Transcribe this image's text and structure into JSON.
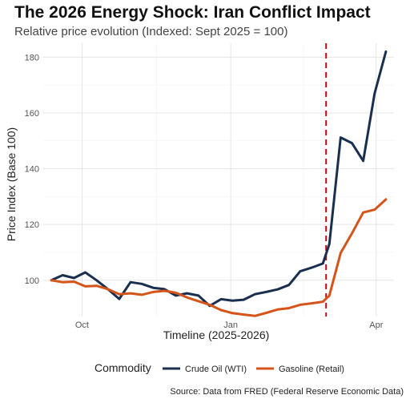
{
  "chart_data": {
    "type": "line",
    "title": "The 2026 Energy Shock: Iran Conflict Impact",
    "subtitle": "Relative price evolution (Indexed: Sept 2025 = 100)",
    "xlabel": "Timeline (2025-2026)",
    "ylabel": "Price Index (Base 100)",
    "caption": "Source: Data from FRED (Federal Reserve Economic Data)",
    "legend_title": "Commodity",
    "legend_position": "bottom",
    "grid": true,
    "x_ticks": [
      {
        "date": "2025-10-01",
        "label": "Oct"
      },
      {
        "date": "2026-01-01",
        "label": "Jan"
      },
      {
        "date": "2026-04-01",
        "label": "Apr"
      }
    ],
    "xlim": [
      "2025-09-07",
      "2026-04-12"
    ],
    "ylim": [
      87,
      185
    ],
    "y_ticks": [
      100,
      120,
      140,
      160,
      180
    ],
    "event_line": {
      "date": "2026-03-01",
      "color": "#cc0000",
      "style": "dashed"
    },
    "series": [
      {
        "name": "Crude Oil (WTI)",
        "color": "#1a2f4e",
        "points": [
          {
            "x": "2025-09-12",
            "y": 100
          },
          {
            "x": "2025-09-19",
            "y": 101.8
          },
          {
            "x": "2025-09-26",
            "y": 100.8
          },
          {
            "x": "2025-10-03",
            "y": 102.8
          },
          {
            "x": "2025-10-10",
            "y": 100
          },
          {
            "x": "2025-10-17",
            "y": 96.8
          },
          {
            "x": "2025-10-24",
            "y": 93.3
          },
          {
            "x": "2025-10-31",
            "y": 99.3
          },
          {
            "x": "2025-11-07",
            "y": 98.7
          },
          {
            "x": "2025-11-14",
            "y": 97.3
          },
          {
            "x": "2025-11-21",
            "y": 96.8
          },
          {
            "x": "2025-11-28",
            "y": 94.5
          },
          {
            "x": "2025-12-05",
            "y": 95.3
          },
          {
            "x": "2025-12-12",
            "y": 94.5
          },
          {
            "x": "2025-12-19",
            "y": 90.8
          },
          {
            "x": "2025-12-26",
            "y": 93.2
          },
          {
            "x": "2026-01-02",
            "y": 92.7
          },
          {
            "x": "2026-01-09",
            "y": 93
          },
          {
            "x": "2026-01-16",
            "y": 95
          },
          {
            "x": "2026-01-23",
            "y": 95.8
          },
          {
            "x": "2026-01-30",
            "y": 96.7
          },
          {
            "x": "2026-02-06",
            "y": 98.3
          },
          {
            "x": "2026-02-13",
            "y": 103.2
          },
          {
            "x": "2026-02-20",
            "y": 104.5
          },
          {
            "x": "2026-02-27",
            "y": 106
          },
          {
            "x": "2026-03-03",
            "y": 113
          },
          {
            "x": "2026-03-10",
            "y": 151.2
          },
          {
            "x": "2026-03-17",
            "y": 149.2
          },
          {
            "x": "2026-03-24",
            "y": 142.8
          },
          {
            "x": "2026-03-31",
            "y": 167
          },
          {
            "x": "2026-04-07",
            "y": 182
          }
        ]
      },
      {
        "name": "Gasoline (Retail)",
        "color": "#d4541a",
        "points": [
          {
            "x": "2025-09-12",
            "y": 100
          },
          {
            "x": "2025-09-19",
            "y": 99.3
          },
          {
            "x": "2025-09-26",
            "y": 99.5
          },
          {
            "x": "2025-10-03",
            "y": 97.8
          },
          {
            "x": "2025-10-10",
            "y": 98
          },
          {
            "x": "2025-10-17",
            "y": 96.8
          },
          {
            "x": "2025-10-24",
            "y": 95
          },
          {
            "x": "2025-10-31",
            "y": 95.3
          },
          {
            "x": "2025-11-07",
            "y": 94.8
          },
          {
            "x": "2025-11-14",
            "y": 95.8
          },
          {
            "x": "2025-11-21",
            "y": 96.2
          },
          {
            "x": "2025-11-28",
            "y": 95.5
          },
          {
            "x": "2025-12-05",
            "y": 93.8
          },
          {
            "x": "2025-12-12",
            "y": 92.5
          },
          {
            "x": "2025-12-19",
            "y": 91.2
          },
          {
            "x": "2025-12-26",
            "y": 89.3
          },
          {
            "x": "2026-01-02",
            "y": 88.2
          },
          {
            "x": "2026-01-09",
            "y": 87.7
          },
          {
            "x": "2026-01-16",
            "y": 87.2
          },
          {
            "x": "2026-01-23",
            "y": 88.3
          },
          {
            "x": "2026-01-30",
            "y": 89.5
          },
          {
            "x": "2026-02-06",
            "y": 90
          },
          {
            "x": "2026-02-13",
            "y": 91.2
          },
          {
            "x": "2026-02-20",
            "y": 91.7
          },
          {
            "x": "2026-02-27",
            "y": 92.3
          },
          {
            "x": "2026-03-03",
            "y": 94.5
          },
          {
            "x": "2026-03-10",
            "y": 109.8
          },
          {
            "x": "2026-03-17",
            "y": 116.8
          },
          {
            "x": "2026-03-24",
            "y": 124.3
          },
          {
            "x": "2026-03-31",
            "y": 125.3
          },
          {
            "x": "2026-04-07",
            "y": 129
          }
        ]
      }
    ]
  }
}
